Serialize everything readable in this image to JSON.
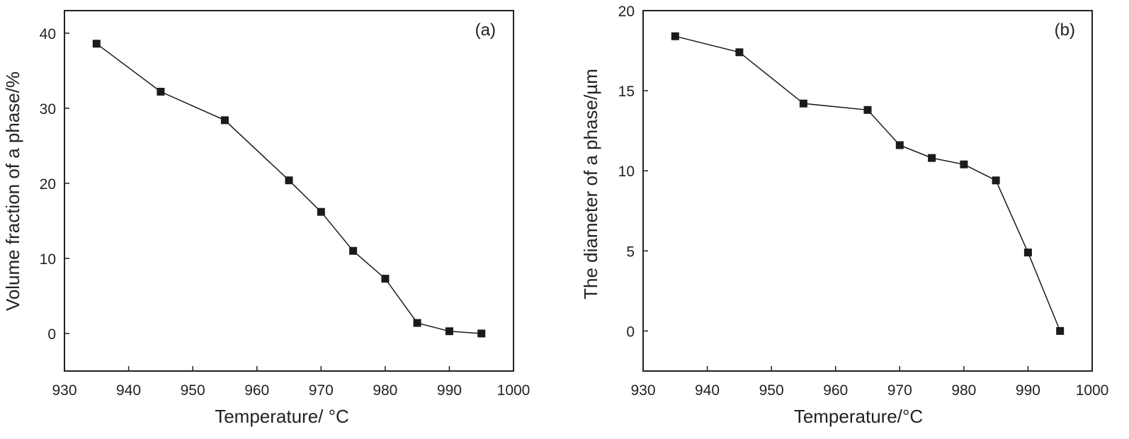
{
  "chart_data": [
    {
      "type": "line",
      "panel_label": "(a)",
      "xlabel": "Temperature/ °C",
      "ylabel": "Volume fraction of a phase/%",
      "xlim": [
        930,
        1000
      ],
      "ylim": [
        -5,
        43
      ],
      "xticks": [
        930,
        940,
        950,
        960,
        970,
        980,
        990,
        1000
      ],
      "yticks": [
        0,
        10,
        20,
        30,
        40
      ],
      "grid": false,
      "series": [
        {
          "marker": "square",
          "color": "#1a1a1a",
          "x": [
            935,
            945,
            955,
            965,
            970,
            975,
            980,
            985,
            990,
            995
          ],
          "y": [
            38.6,
            32.2,
            28.4,
            20.4,
            16.2,
            11.0,
            7.3,
            1.4,
            0.3,
            0.0
          ]
        }
      ]
    },
    {
      "type": "line",
      "panel_label": "(b)",
      "xlabel": "Temperature/°C",
      "ylabel": "The diameter of a phase/µm",
      "xlim": [
        930,
        1000
      ],
      "ylim": [
        -2.5,
        20
      ],
      "xticks": [
        930,
        940,
        950,
        960,
        970,
        980,
        990,
        1000
      ],
      "yticks": [
        0,
        5,
        10,
        15,
        20
      ],
      "grid": false,
      "series": [
        {
          "marker": "square",
          "color": "#1a1a1a",
          "x": [
            935,
            945,
            955,
            965,
            970,
            975,
            980,
            985,
            990,
            995
          ],
          "y": [
            18.4,
            17.4,
            14.2,
            13.8,
            11.6,
            10.8,
            10.4,
            9.4,
            4.9,
            0.0
          ]
        }
      ]
    }
  ]
}
